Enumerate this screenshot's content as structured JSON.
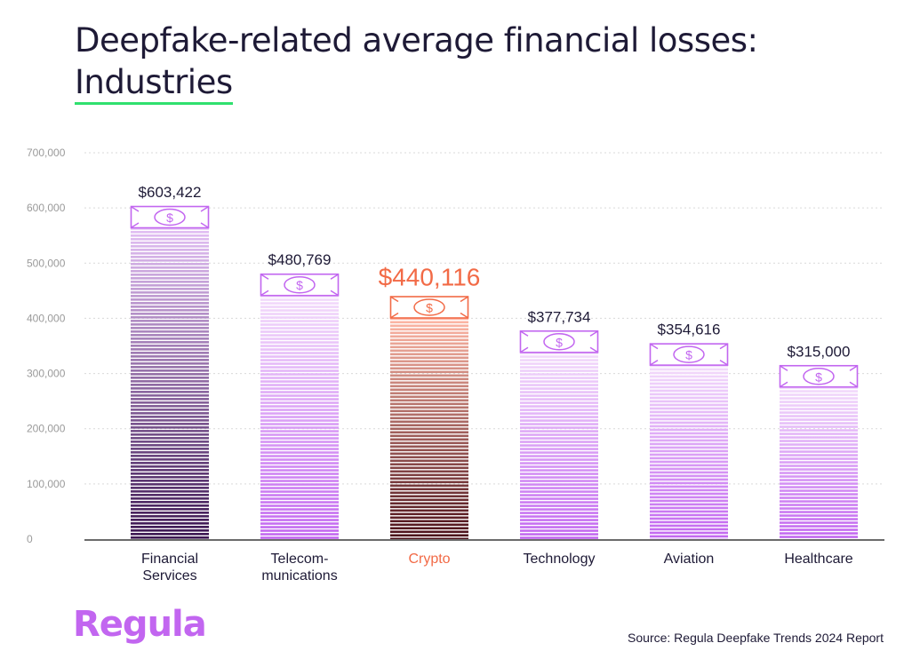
{
  "title": {
    "line1": "Deepfake-related average financial losses:",
    "line2": "Industries"
  },
  "brand": "Regula",
  "source": "Source: Regula Deepfake Trends 2024 Report",
  "colors": {
    "bar_purple": "#c266f0",
    "bar_dark_purple": "#3a1450",
    "highlight_orange": "#f26a46",
    "crypto_dark": "#4a0f18",
    "axis_text": "#9a9a9a",
    "label_text": "#1e1a36",
    "underline_green": "#2fe06e"
  },
  "icons": {
    "bill_icon": "dollar-bill-icon"
  },
  "chart_data": {
    "type": "bar",
    "categories": [
      "Financial Services",
      "Telecom-munications",
      "Crypto",
      "Technology",
      "Aviation",
      "Healthcare"
    ],
    "category_lines": [
      [
        "Financial",
        "Services"
      ],
      [
        "Telecom-",
        "munications"
      ],
      [
        "Crypto"
      ],
      [
        "Technology"
      ],
      [
        "Aviation"
      ],
      [
        "Healthcare"
      ]
    ],
    "values": [
      603422,
      480769,
      440116,
      377734,
      354616,
      315000
    ],
    "value_labels": [
      "$603,422",
      "$480,769",
      "$440,116",
      "$377,734",
      "$354,616",
      "$315,000"
    ],
    "highlight_index": 2,
    "ylim": [
      0,
      700000
    ],
    "yticks": [
      0,
      100000,
      200000,
      300000,
      400000,
      500000,
      600000,
      700000
    ],
    "ytick_labels": [
      "0",
      "100,000",
      "200,000",
      "300,000",
      "400,000",
      "500,000",
      "600,000",
      "700,000"
    ],
    "grid": true,
    "title": "Deepfake-related average financial losses: Industries"
  }
}
